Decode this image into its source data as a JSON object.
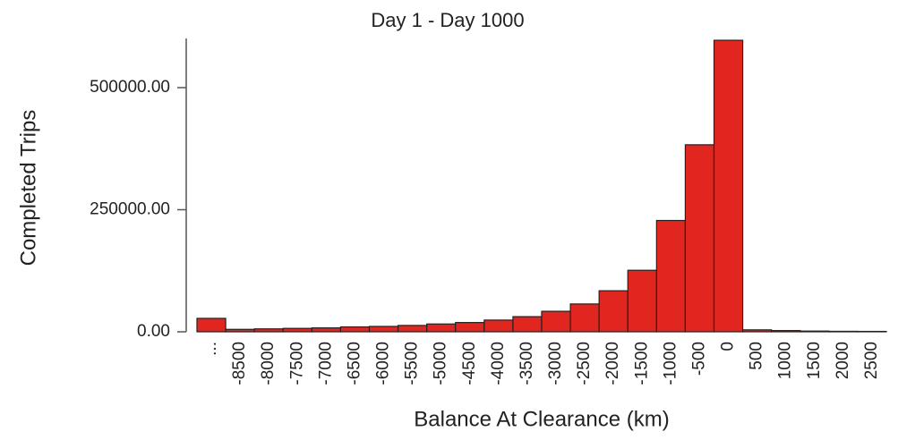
{
  "chart_data": {
    "type": "bar",
    "title": "Day 1 - Day 1000",
    "x_label": "Balance At Clearance (km)",
    "y_label": "Completed Trips",
    "categories": [
      "...",
      "-8500",
      "-8000",
      "-7500",
      "-7000",
      "-6500",
      "-6000",
      "-5500",
      "-5000",
      "-4500",
      "-4000",
      "-3500",
      "-3000",
      "-2500",
      "-2000",
      "-1500",
      "-1000",
      "-500",
      "0",
      "500",
      "1000",
      "1500",
      "2000",
      "2500"
    ],
    "values": [
      27500,
      5000,
      6000,
      7000,
      8000,
      10000,
      11000,
      13000,
      16000,
      19000,
      24000,
      31000,
      42000,
      57000,
      84000,
      126000,
      228000,
      383000,
      597000,
      4000,
      2500,
      1500,
      1000,
      800
    ],
    "color": "#e0261e",
    "ylim": [
      0,
      600000
    ],
    "yticks": [
      {
        "value": 0,
        "label": "0.00"
      },
      {
        "value": 250000,
        "label": "250000.00"
      },
      {
        "value": 500000,
        "label": "500000.00"
      }
    ],
    "grid": false
  }
}
